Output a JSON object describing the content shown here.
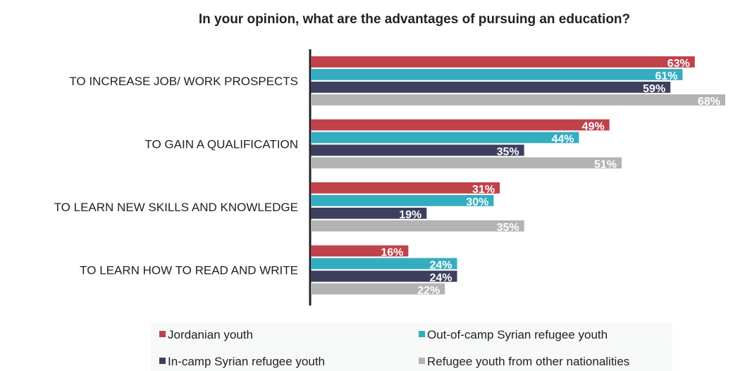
{
  "chart_data": {
    "type": "bar",
    "orientation": "horizontal",
    "title": "In your opinion, what are the advantages of pursuing an education?",
    "xlabel": "",
    "ylabel": "",
    "xlim": [
      0,
      68
    ],
    "unit": "%",
    "grid": false,
    "legend_position": "bottom",
    "categories": [
      "TO INCREASE JOB/ WORK PROSPECTS",
      "TO GAIN A QUALIFICATION",
      "TO LEARN NEW SKILLS AND KNOWLEDGE",
      "TO LEARN HOW TO READ AND WRITE"
    ],
    "series": [
      {
        "name": "Jordanian youth",
        "color": "#c0424a",
        "values": [
          63,
          49,
          31,
          16
        ],
        "labels": [
          "63%",
          "49%",
          "31%",
          "16%"
        ]
      },
      {
        "name": "Out-of-camp Syrian refugee youth",
        "color": "#35adc1",
        "values": [
          61,
          44,
          30,
          24
        ],
        "labels": [
          "61%",
          "44%",
          "30%",
          "24%"
        ]
      },
      {
        "name": "In-camp Syrian refugee youth",
        "color": "#3c3f5d",
        "values": [
          59,
          35,
          19,
          24
        ],
        "labels": [
          "59%",
          "35%",
          "19%",
          "24%"
        ]
      },
      {
        "name": "Refugee youth from other nationalities",
        "color": "#b3b3b3",
        "values": [
          68,
          51,
          35,
          22
        ],
        "labels": [
          "68%",
          "51%",
          "35%",
          "22%"
        ]
      }
    ]
  }
}
